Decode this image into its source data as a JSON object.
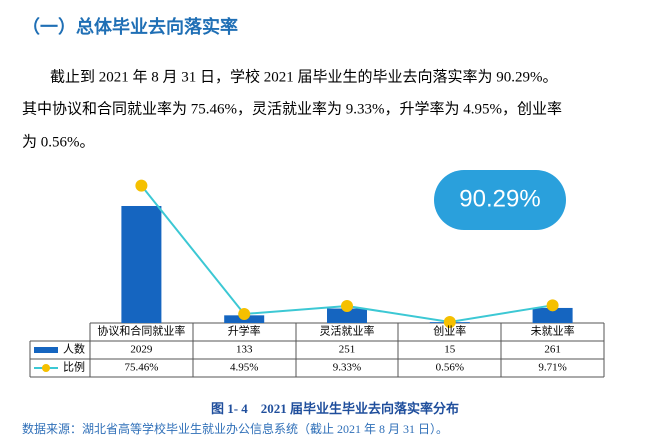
{
  "heading": "（一）总体毕业去向落实率",
  "paragraph": [
    "截止到 2021 年 8 月 31 日，学校 2021 届毕业生的毕业去向落实率为 90.29%。",
    "其中协议和合同就业率为 75.46%，灵活就业率为 9.33%，升学率为 4.95%，创业率",
    "为 0.56%。"
  ],
  "chart_data": {
    "type": "bar",
    "title": "图 1- 4　2021 届毕业生毕业去向落实率分布",
    "annotation": "90.29%",
    "source": "数据来源：湖北省高等学校毕业生就业办公信息系统（截止 2021 年 8 月 31 日）。",
    "categories": [
      "协议和合同就业率",
      "升学率",
      "灵活就业率",
      "创业率",
      "未就业率"
    ],
    "series": [
      {
        "name": "人数",
        "color": "#1565c0",
        "values": [
          2029,
          133,
          251,
          15,
          261
        ]
      },
      {
        "name": "比例",
        "color": "#3cc8d4",
        "marker_color": "#f5c000",
        "type": "line",
        "axis": "y2",
        "values": [
          75.46,
          4.95,
          9.33,
          0.56,
          9.71
        ],
        "value_labels": [
          "75.46%",
          "4.95%",
          "9.33%",
          "0.56%",
          "9.71%"
        ]
      }
    ],
    "ylim": [
      0,
      3000
    ],
    "y2lim": [
      0,
      95
    ]
  }
}
